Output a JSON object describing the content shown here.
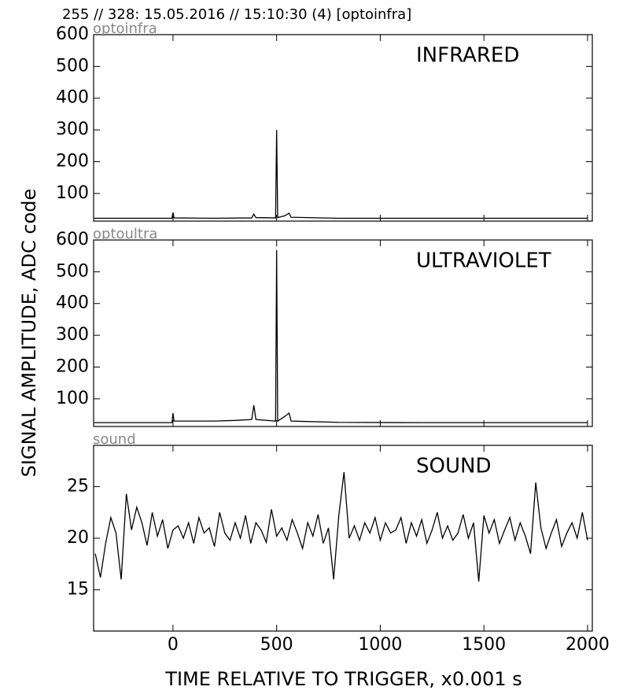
{
  "header": "255 // 328:   15.05.2016 // 15:10:30 (4)  [optoinfra]",
  "chart_data": [
    {
      "type": "line",
      "label": "optoinfra",
      "annotation": "INFRARED",
      "xlim": [
        -383,
        2023
      ],
      "xticks": [
        0,
        500,
        1000,
        1500,
        2000
      ],
      "ylim": [
        13,
        600
      ],
      "yticks": [
        100,
        200,
        300,
        400,
        500,
        600
      ],
      "series": [
        {
          "name": "optoinfra",
          "color": "#000000",
          "x": [
            -380,
            -100,
            -5,
            0,
            5,
            200,
            380,
            390,
            400,
            495,
            500,
            505,
            540,
            560,
            570,
            800,
            1200,
            1600,
            2000
          ],
          "values": [
            22,
            22,
            22,
            40,
            23,
            22,
            23,
            35,
            24,
            23,
            300,
            24,
            30,
            38,
            25,
            22,
            22,
            22,
            22
          ]
        }
      ]
    },
    {
      "type": "line",
      "label": "optoultra",
      "annotation": "ULTRAVIOLET",
      "ylabel": "SIGNAL AMPLITUDE,  ADC code",
      "xlim": [
        -383,
        2023
      ],
      "xticks": [
        0,
        500,
        1000,
        1500,
        2000
      ],
      "ylim": [
        13,
        600
      ],
      "yticks": [
        100,
        200,
        300,
        400,
        500,
        600
      ],
      "series": [
        {
          "name": "optoultra",
          "color": "#000000",
          "x": [
            -380,
            -100,
            -5,
            0,
            5,
            200,
            300,
            380,
            390,
            400,
            495,
            500,
            505,
            540,
            560,
            570,
            800,
            1200,
            1600,
            2000
          ],
          "values": [
            25,
            25,
            25,
            55,
            30,
            30,
            32,
            35,
            80,
            35,
            30,
            568,
            30,
            45,
            55,
            30,
            26,
            25,
            25,
            25
          ]
        }
      ]
    },
    {
      "type": "line",
      "label": "sound",
      "annotation": "SOUND",
      "xlabel": "TIME RELATIVE TO TRIGGER,   x0.001 s",
      "xlim": [
        -383,
        2023
      ],
      "xticks": [
        0,
        500,
        1000,
        1500,
        2000
      ],
      "ylim": [
        11,
        29
      ],
      "yticks": [
        15,
        20,
        25
      ],
      "series": [
        {
          "name": "sound",
          "color": "#000000",
          "x": [
            -375,
            -350,
            -325,
            -300,
            -275,
            -250,
            -225,
            -200,
            -175,
            -150,
            -125,
            -100,
            -75,
            -50,
            -25,
            0,
            25,
            50,
            75,
            100,
            125,
            150,
            175,
            200,
            225,
            250,
            275,
            300,
            325,
            350,
            375,
            400,
            425,
            450,
            475,
            500,
            525,
            550,
            575,
            600,
            625,
            650,
            675,
            700,
            725,
            750,
            775,
            800,
            825,
            850,
            875,
            900,
            925,
            950,
            975,
            1000,
            1025,
            1050,
            1075,
            1100,
            1125,
            1150,
            1175,
            1200,
            1225,
            1250,
            1275,
            1300,
            1325,
            1350,
            1375,
            1400,
            1425,
            1450,
            1475,
            1500,
            1525,
            1550,
            1575,
            1600,
            1625,
            1650,
            1675,
            1700,
            1725,
            1750,
            1775,
            1800,
            1825,
            1850,
            1875,
            1900,
            1925,
            1950,
            1975,
            2000
          ],
          "values": [
            18.5,
            16.2,
            19.5,
            22.0,
            20.5,
            16.0,
            24.3,
            20.8,
            23.0,
            21.5,
            19.3,
            22.5,
            20.2,
            21.8,
            19.0,
            20.8,
            21.2,
            20.0,
            21.5,
            19.5,
            22.0,
            20.5,
            21.0,
            19.2,
            22.5,
            20.5,
            19.8,
            21.5,
            20.0,
            22.2,
            19.5,
            21.5,
            20.8,
            19.6,
            22.8,
            20.2,
            21.0,
            19.8,
            21.8,
            20.5,
            19.0,
            21.5,
            20.2,
            22.3,
            19.5,
            21.0,
            16.0,
            22.2,
            26.4,
            20.0,
            21.2,
            19.8,
            21.5,
            20.5,
            22.0,
            19.8,
            21.5,
            20.5,
            20.8,
            22.0,
            19.5,
            21.5,
            20.2,
            21.8,
            19.5,
            20.8,
            22.5,
            20.0,
            21.2,
            19.8,
            20.5,
            22.3,
            20.0,
            21.5,
            15.8,
            22.2,
            20.5,
            21.8,
            19.5,
            20.8,
            22.0,
            19.8,
            21.5,
            20.2,
            18.5,
            25.4,
            21.0,
            19.0,
            20.5,
            21.8,
            19.2,
            20.5,
            21.5,
            20.0,
            22.5,
            19.8
          ]
        }
      ]
    }
  ]
}
